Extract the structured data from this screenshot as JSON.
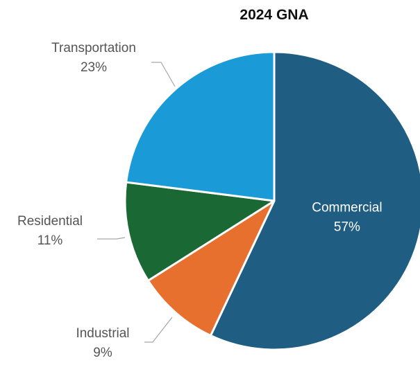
{
  "chart_data": {
    "type": "pie",
    "title": "2024 GNA",
    "start_angle_deg": 0,
    "direction": "clockwise",
    "legend": "none",
    "slices": [
      {
        "label": "Commercial",
        "value": 57,
        "value_label": "57%",
        "color": "#1f5e82",
        "label_position": "inside"
      },
      {
        "label": "Industrial",
        "value": 9,
        "value_label": "9%",
        "color": "#e8702f",
        "label_position": "outside"
      },
      {
        "label": "Residential",
        "value": 11,
        "value_label": "11%",
        "color": "#1a6833",
        "label_position": "outside"
      },
      {
        "label": "Transportation",
        "value": 23,
        "value_label": "23%",
        "color": "#1a9ad6",
        "label_position": "outside"
      }
    ]
  }
}
